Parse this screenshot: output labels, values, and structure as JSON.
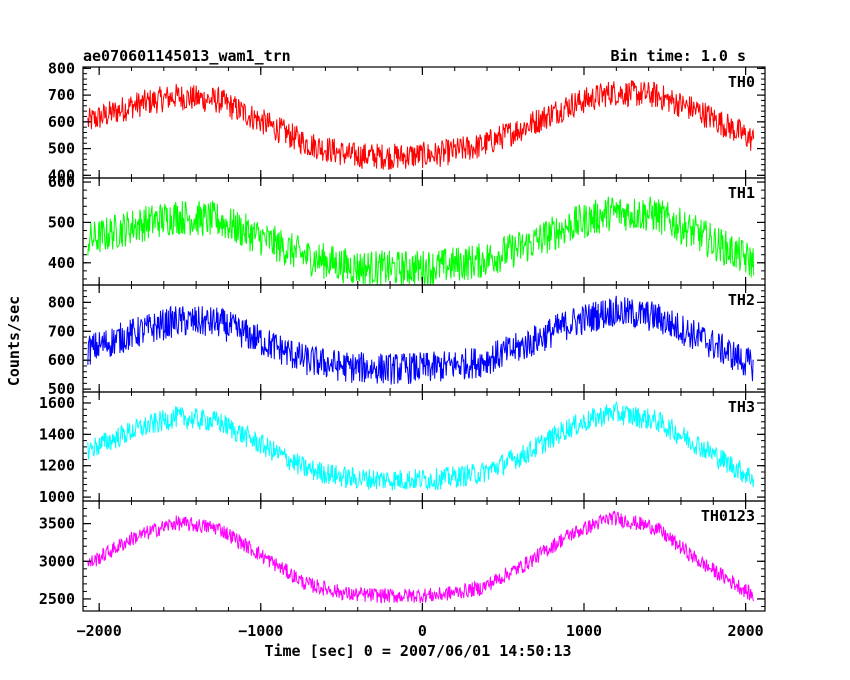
{
  "chart_data": {
    "type": "line",
    "title": "ae070601145013_wam1_trn",
    "subtitle": "Bin time: 1.0 s",
    "xlabel": "Time [sec] 0 = 2007/06/01 14:50:13",
    "ylabel": "Counts/sec",
    "xlim": [
      -2100,
      2120
    ],
    "x_ticks": [
      -2000,
      -1000,
      0,
      1000,
      2000
    ],
    "x_tick_labels": [
      "−2000",
      "−1000",
      "0",
      "1000",
      "2000"
    ],
    "grid": false,
    "panels": [
      {
        "name": "TH0",
        "color": "#ff0000",
        "ylim": [
          390,
          805
        ],
        "y_ticks": [
          400,
          500,
          600,
          700,
          800
        ],
        "x": [
          -2070,
          -1800,
          -1530,
          -1260,
          -990,
          -720,
          -450,
          -180,
          90,
          360,
          630,
          900,
          1170,
          1440,
          1710,
          1980,
          2050
        ],
        "values": [
          600,
          660,
          695,
          680,
          600,
          520,
          475,
          470,
          478,
          510,
          580,
          660,
          710,
          700,
          640,
          555,
          530
        ],
        "noise": 50
      },
      {
        "name": "TH1",
        "color": "#00ff00",
        "ylim": [
          345,
          610
        ],
        "y_ticks": [
          400,
          500,
          600
        ],
        "x": [
          -2070,
          -1800,
          -1530,
          -1260,
          -990,
          -720,
          -450,
          -180,
          90,
          360,
          630,
          900,
          1170,
          1440,
          1710,
          1980,
          2050
        ],
        "values": [
          455,
          490,
          515,
          505,
          460,
          415,
          390,
          385,
          390,
          405,
          440,
          490,
          525,
          520,
          470,
          415,
          400
        ],
        "noise": 45
      },
      {
        "name": "TH2",
        "color": "#0000ff",
        "ylim": [
          490,
          860
        ],
        "y_ticks": [
          500,
          600,
          700,
          800
        ],
        "x": [
          -2070,
          -1800,
          -1530,
          -1260,
          -990,
          -720,
          -450,
          -180,
          90,
          360,
          630,
          900,
          1170,
          1440,
          1710,
          1980,
          2050
        ],
        "values": [
          635,
          690,
          735,
          730,
          665,
          600,
          575,
          570,
          575,
          595,
          650,
          725,
          770,
          750,
          680,
          600,
          580
        ],
        "noise": 55
      },
      {
        "name": "TH3",
        "color": "#00ffff",
        "ylim": [
          975,
          1670
        ],
        "y_ticks": [
          1000,
          1200,
          1400,
          1600
        ],
        "x": [
          -2070,
          -1800,
          -1530,
          -1260,
          -990,
          -720,
          -450,
          -180,
          90,
          360,
          630,
          900,
          1170,
          1440,
          1710,
          1980,
          2050
        ],
        "values": [
          1300,
          1420,
          1510,
          1480,
          1330,
          1180,
          1120,
          1110,
          1115,
          1150,
          1270,
          1440,
          1540,
          1490,
          1330,
          1160,
          1120
        ],
        "noise": 70
      },
      {
        "name": "TH0123",
        "color": "#ff00ff",
        "ylim": [
          2340,
          3800
        ],
        "y_ticks": [
          2500,
          3000,
          3500
        ],
        "x": [
          -2070,
          -1800,
          -1530,
          -1260,
          -990,
          -720,
          -450,
          -180,
          90,
          360,
          630,
          900,
          1170,
          1440,
          1710,
          1980,
          2050
        ],
        "values": [
          2960,
          3300,
          3510,
          3440,
          3070,
          2700,
          2560,
          2540,
          2550,
          2640,
          2950,
          3340,
          3580,
          3450,
          3000,
          2640,
          2530
        ],
        "noise": 100
      }
    ]
  }
}
